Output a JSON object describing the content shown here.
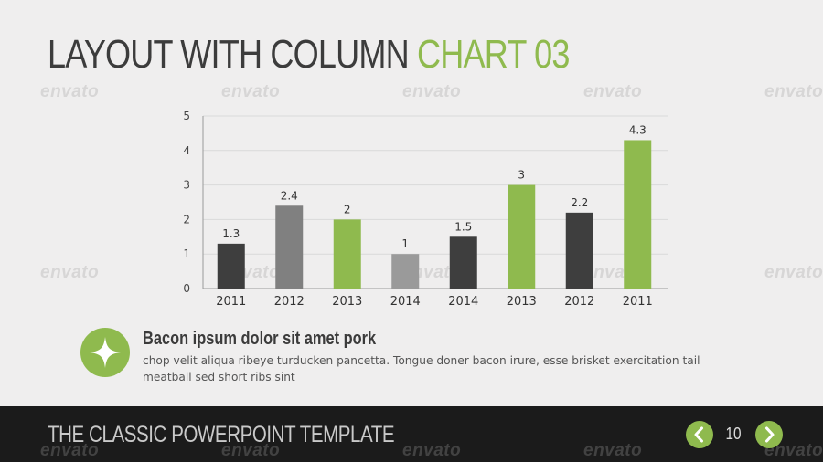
{
  "slide": {
    "title_main": "LAYOUT WITH COLUMN ",
    "title_accent": "CHART 03",
    "watermark_text": "envato",
    "accent_color": "#8fba4e",
    "dark_color": "#3e3e3e",
    "gray_color": "#808080"
  },
  "chart_data": {
    "type": "bar",
    "categories": [
      "2011",
      "2012",
      "2013",
      "2014",
      "2014",
      "2013",
      "2012",
      "2011"
    ],
    "values": [
      1.3,
      2.4,
      2,
      1,
      1.5,
      3,
      2.2,
      4.3
    ],
    "data_labels": [
      "1.3",
      "2.4",
      "2",
      "1",
      "1.5",
      "3",
      "2.2",
      "4.3"
    ],
    "bar_colors": [
      "#3e3e3e",
      "#808080",
      "#8fba4e",
      "#9a9a9a",
      "#3e3e3e",
      "#8fba4e",
      "#3e3e3e",
      "#8fba4e"
    ],
    "yticks": [
      "0",
      "1",
      "2",
      "3",
      "4",
      "5"
    ],
    "ylim": [
      0,
      5
    ],
    "grid": true
  },
  "note": {
    "icon": "star-icon",
    "heading": "Bacon ipsum dolor sit amet pork",
    "body": "chop velit aliqua ribeye turducken pancetta. Tongue doner bacon irure, esse brisket exercitation tail meatball sed short ribs sint"
  },
  "footer": {
    "title": "THE CLASSIC POWERPOINT TEMPLATE",
    "page_number": "10",
    "prev_icon": "chevron-left-icon",
    "next_icon": "chevron-right-icon"
  }
}
